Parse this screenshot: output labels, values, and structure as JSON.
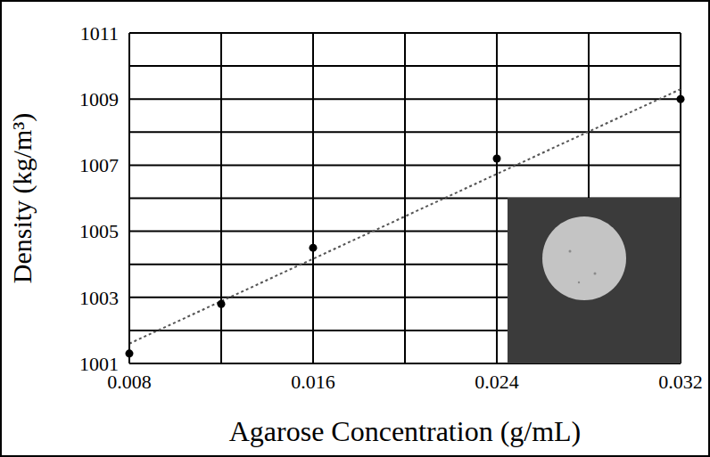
{
  "chart_data": {
    "type": "scatter",
    "x_label": "Agarose Concentration (g/mL)",
    "y_label": "Density (kg/m³)",
    "xlim": [
      0.008,
      0.032
    ],
    "xticks": [
      0.008,
      0.016,
      0.024,
      0.032
    ],
    "ylim": [
      1001,
      1011
    ],
    "yticks": [
      1001,
      1003,
      1005,
      1007,
      1009,
      1011
    ],
    "grid": true,
    "series": [
      {
        "type": "scatter",
        "marker": "circle",
        "color": "#000000",
        "x": [
          0.008,
          0.012,
          0.016,
          0.024,
          0.032
        ],
        "values": [
          1001.3,
          1002.8,
          1004.5,
          1007.2,
          1009.0
        ]
      },
      {
        "type": "line",
        "line_style": "dotted",
        "color": "#555555",
        "x": [
          0.008,
          0.032
        ],
        "values": [
          1001.6,
          1009.3
        ]
      }
    ]
  }
}
